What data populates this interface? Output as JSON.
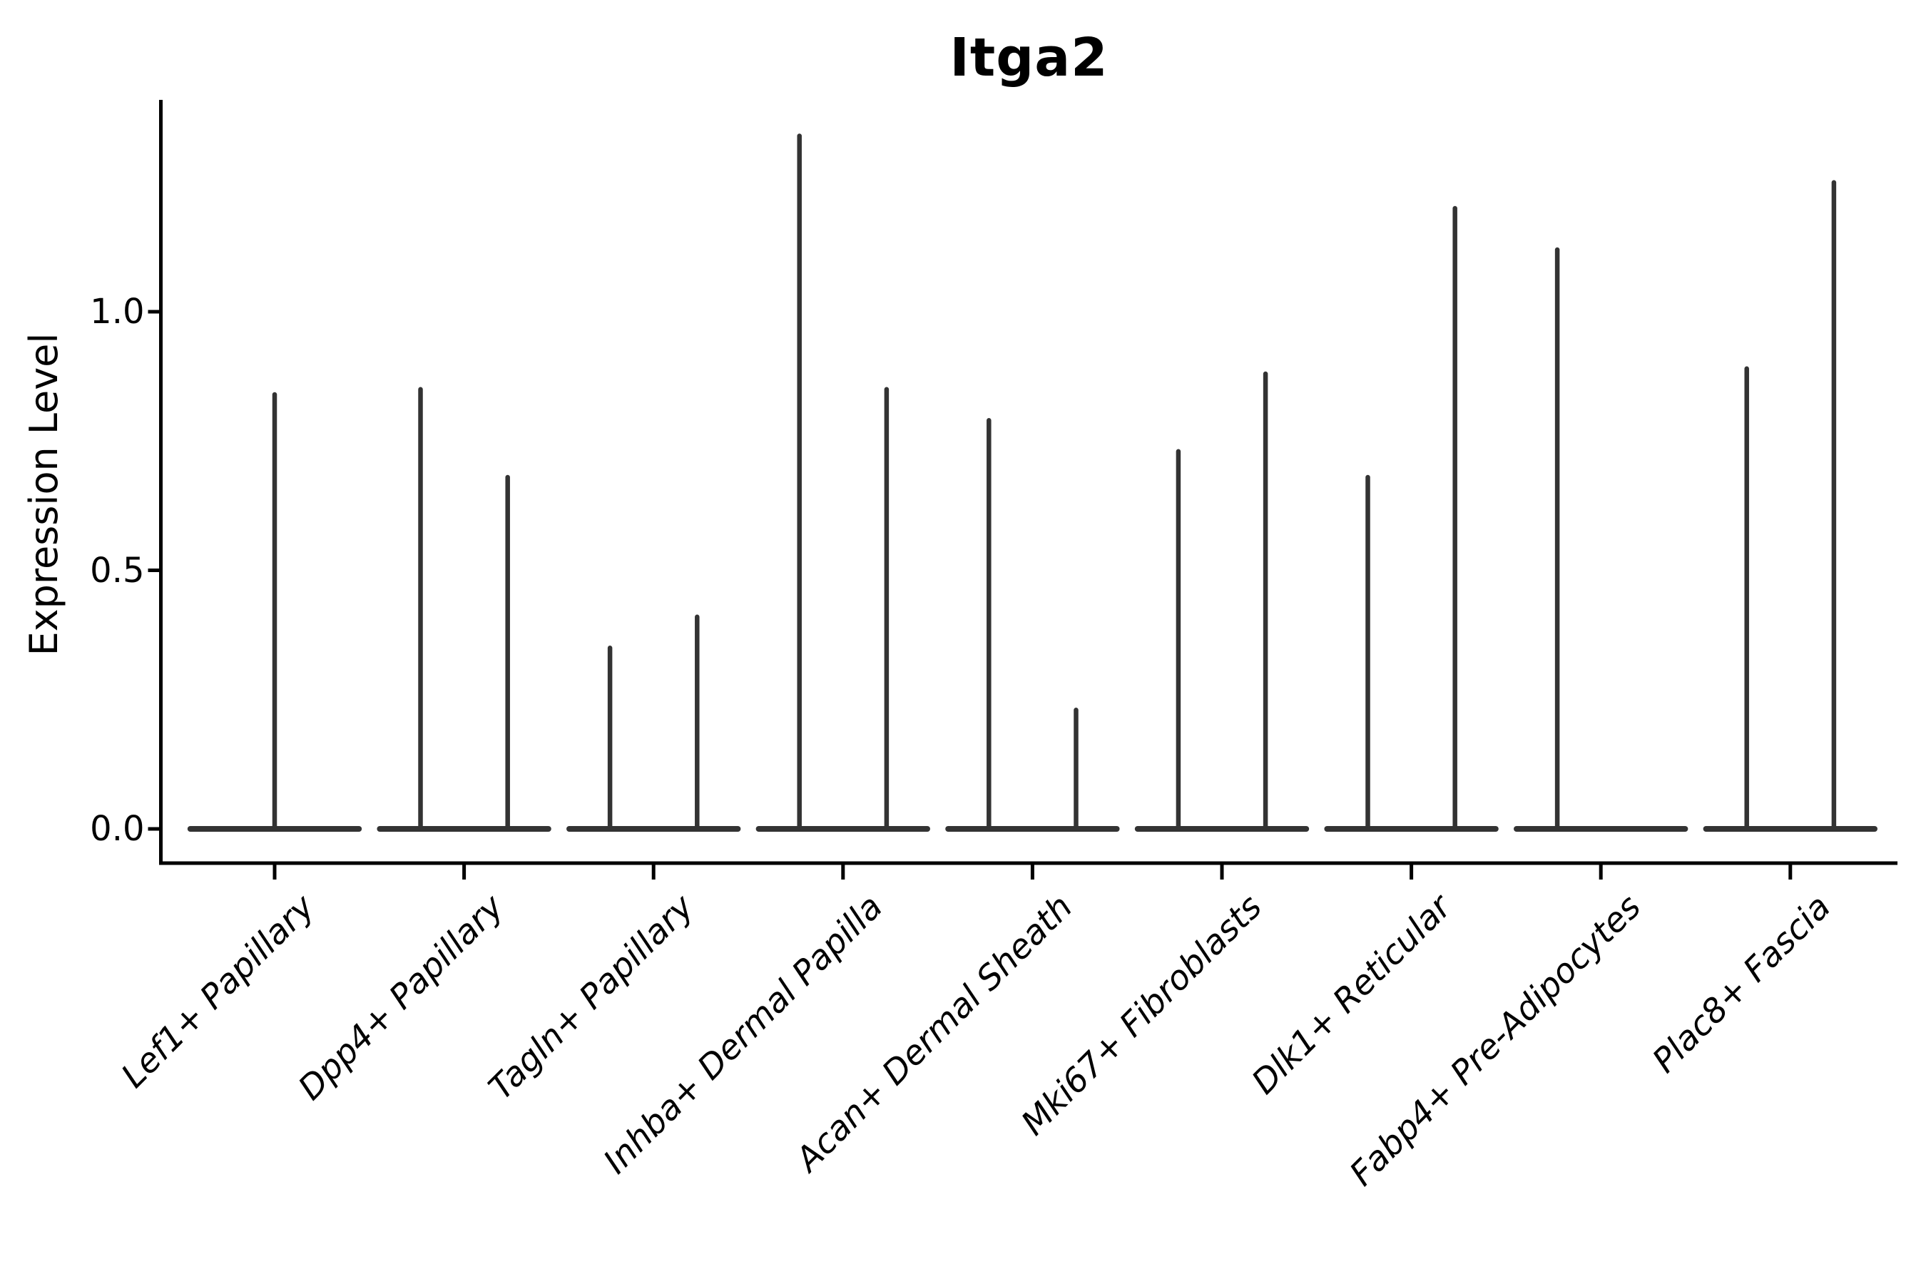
{
  "chart_data": {
    "type": "violin",
    "title": "Itga2",
    "xlabel": "",
    "ylabel": "Expression Level",
    "ytick_labels": [
      "0.0",
      "0.5",
      "1.0"
    ],
    "ytick_values": [
      0.0,
      0.5,
      1.0
    ],
    "ylim": [
      -0.07,
      1.4
    ],
    "grid": false,
    "legend_position": "none",
    "axis_color": "#000000",
    "violin_color": "#333333",
    "background_color": "#ffffff",
    "categories": [
      "Lef1+ Papillary",
      "Dpp4+ Papillary",
      "Tagln+ Papillary",
      "Inhba+ Dermal Papilla",
      "Acan+ Dermal Sheath",
      "Mki67+ Fibroblasts",
      "Dlk1+ Reticular",
      "Fabp4+ Pre-Adipocytes",
      "Plac8+ Fascia"
    ],
    "violins": [
      {
        "category": "Lef1+ Papillary",
        "base_halfwidth": 0.46,
        "spikes": [
          {
            "offset": 0.0,
            "max": 0.84
          }
        ]
      },
      {
        "category": "Dpp4+ Papillary",
        "base_halfwidth": 0.46,
        "spikes": [
          {
            "offset": -0.23,
            "max": 0.85
          },
          {
            "offset": 0.23,
            "max": 0.68
          }
        ]
      },
      {
        "category": "Tagln+ Papillary",
        "base_halfwidth": 0.46,
        "spikes": [
          {
            "offset": -0.23,
            "max": 0.35
          },
          {
            "offset": 0.23,
            "max": 0.41
          }
        ]
      },
      {
        "category": "Inhba+ Dermal Papilla",
        "base_halfwidth": 0.46,
        "spikes": [
          {
            "offset": -0.23,
            "max": 1.34
          },
          {
            "offset": 0.23,
            "max": 0.85
          }
        ]
      },
      {
        "category": "Acan+ Dermal Sheath",
        "base_halfwidth": 0.46,
        "spikes": [
          {
            "offset": -0.23,
            "max": 0.79
          },
          {
            "offset": 0.23,
            "max": 0.23
          }
        ]
      },
      {
        "category": "Mki67+ Fibroblasts",
        "base_halfwidth": 0.46,
        "spikes": [
          {
            "offset": -0.23,
            "max": 0.73
          },
          {
            "offset": 0.23,
            "max": 0.88
          }
        ]
      },
      {
        "category": "Dlk1+ Reticular",
        "base_halfwidth": 0.46,
        "spikes": [
          {
            "offset": -0.23,
            "max": 0.68
          },
          {
            "offset": 0.23,
            "max": 1.2
          }
        ]
      },
      {
        "category": "Fabp4+ Pre-Adipocytes",
        "base_halfwidth": 0.46,
        "spikes": [
          {
            "offset": -0.23,
            "max": 1.12
          }
        ]
      },
      {
        "category": "Plac8+ Fascia",
        "base_halfwidth": 0.46,
        "spikes": [
          {
            "offset": -0.23,
            "max": 0.89
          },
          {
            "offset": 0.23,
            "max": 1.25
          }
        ]
      }
    ]
  }
}
